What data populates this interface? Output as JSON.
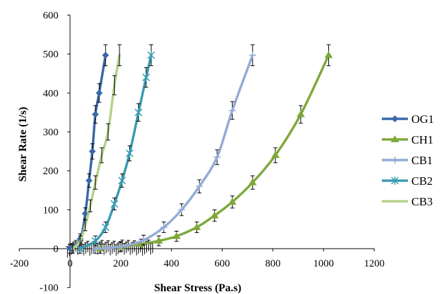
{
  "chart_data": {
    "type": "line",
    "title": "",
    "xlabel": "Shear Stress (Pa.s)",
    "ylabel": "Shear Rate (1/s)",
    "xlim": [
      -200,
      1200
    ],
    "ylim": [
      -100,
      600
    ],
    "xticks": [
      "-200",
      "0",
      "200",
      "400",
      "600",
      "800",
      "1000",
      "1200"
    ],
    "yticks": [
      "-100",
      "0",
      "100",
      "200",
      "300",
      "400",
      "500",
      "600"
    ],
    "legend_position": "right",
    "error_bars": true,
    "series": [
      {
        "name": "OG1",
        "color": "#3a68a8",
        "marker": "diamond",
        "x": [
          0,
          40,
          60,
          75,
          88,
          100,
          115,
          140
        ],
        "y": [
          0,
          25,
          90,
          175,
          250,
          345,
          400,
          497
        ]
      },
      {
        "name": "CH1",
        "color": "#7fa83c",
        "marker": "triangle",
        "x": [
          120,
          200,
          280,
          350,
          420,
          500,
          570,
          640,
          720,
          810,
          910,
          1020
        ],
        "y": [
          0,
          5,
          12,
          20,
          32,
          55,
          85,
          120,
          170,
          240,
          345,
          497
        ]
      },
      {
        "name": "CB1",
        "color": "#94abd6",
        "marker": "plus",
        "x": [
          100,
          200,
          290,
          370,
          440,
          510,
          580,
          640,
          720
        ],
        "y": [
          0,
          5,
          22,
          55,
          100,
          160,
          235,
          355,
          497
        ]
      },
      {
        "name": "CB2",
        "color": "#3a9bb0",
        "marker": "star",
        "x": [
          40,
          100,
          140,
          175,
          205,
          235,
          270,
          300,
          320
        ],
        "y": [
          0,
          20,
          55,
          115,
          175,
          245,
          350,
          440,
          497
        ]
      },
      {
        "name": "CB3",
        "color": "#b5d08a",
        "marker": "none",
        "x": [
          10,
          40,
          60,
          80,
          100,
          125,
          150,
          175,
          195
        ],
        "y": [
          0,
          20,
          60,
          110,
          170,
          240,
          300,
          420,
          497
        ]
      }
    ]
  }
}
